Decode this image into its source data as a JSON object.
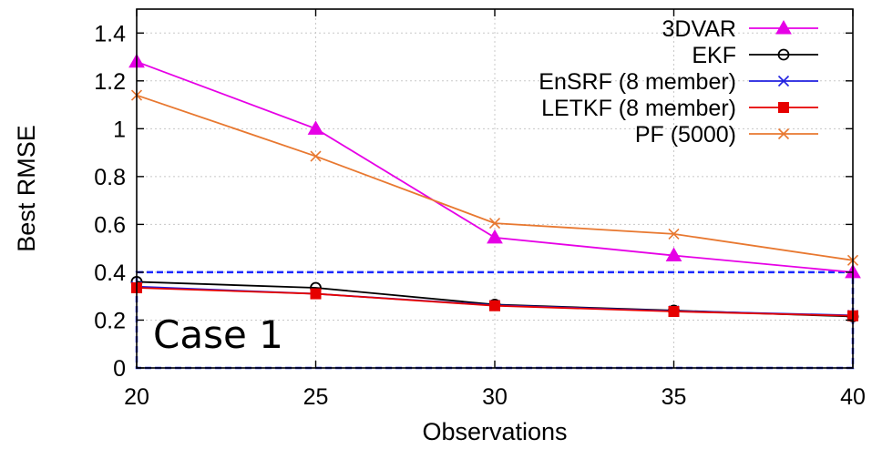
{
  "chart_data": {
    "type": "line",
    "xlabel": "Observations",
    "ylabel": "Best RMSE",
    "x": [
      20,
      25,
      30,
      35,
      40
    ],
    "xlim": [
      20,
      40
    ],
    "ylim": [
      0,
      1.5
    ],
    "xticks": [
      "20",
      "25",
      "30",
      "35",
      "40"
    ],
    "yticks": [
      "0",
      "0.2",
      "0.4",
      "0.6",
      "0.8",
      "1",
      "1.2",
      "1.4"
    ],
    "grid": true,
    "legend_position": "top-right",
    "series": [
      {
        "name": "3DVAR",
        "color": "#e600e6",
        "marker": "triangle",
        "values": [
          1.28,
          1.0,
          0.545,
          0.47,
          0.4
        ]
      },
      {
        "name": "EKF",
        "color": "#000000",
        "marker": "circle",
        "values": [
          0.36,
          0.335,
          0.265,
          0.24,
          0.215
        ]
      },
      {
        "name": "EnSRF (8 member)",
        "color": "#2020e0",
        "marker": "x",
        "values": [
          0.34,
          0.31,
          0.262,
          0.238,
          0.22
        ]
      },
      {
        "name": "LETKF (8 member)",
        "color": "#e60000",
        "marker": "square",
        "values": [
          0.335,
          0.31,
          0.26,
          0.236,
          0.218
        ]
      },
      {
        "name": "PF (5000)",
        "color": "#e87830",
        "marker": "x",
        "values": [
          1.14,
          0.885,
          0.605,
          0.56,
          0.45
        ]
      }
    ],
    "annotation": {
      "text": "Case 1",
      "color": "#1a2aff",
      "box_x": [
        20,
        40
      ],
      "box_y": [
        0,
        0.4
      ]
    }
  }
}
